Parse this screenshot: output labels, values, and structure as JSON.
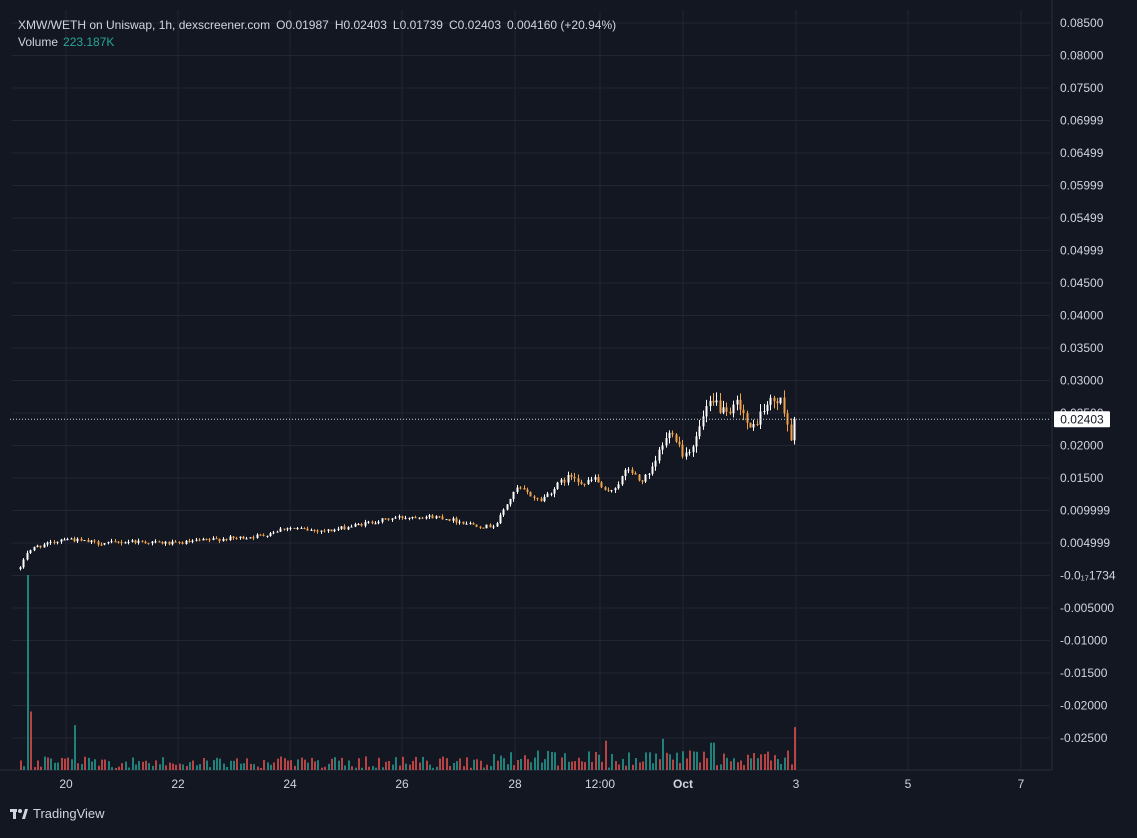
{
  "header": {
    "symbol": "XMW/WETH on Uniswap, 1h, dexscreener.com",
    "ohlc": [
      {
        "label": "O",
        "value": "0.01987"
      },
      {
        "label": "H",
        "value": "0.02403"
      },
      {
        "label": "L",
        "value": "0.01739"
      },
      {
        "label": "C",
        "value": "0.02403"
      }
    ],
    "change": "0.004160 (+20.94%)",
    "volume_label": "Volume",
    "volume_value": "223.187K"
  },
  "brand": "TradingView",
  "colors": {
    "background": "#131722",
    "grid": "#232632",
    "up": "#ffffff",
    "down": "#f0a24a",
    "volume_up": "#26a69a",
    "volume_down": "#ef5350",
    "text": "#d1d4dc",
    "price_tag_bg": "#ffffff",
    "price_tag_text": "#131722"
  },
  "chart_data": {
    "type": "candlestick",
    "title": "XMW/WETH on Uniswap, 1h, dexscreener.com",
    "y_ticks": [
      "0.08500",
      "0.08000",
      "0.07500",
      "0.06999",
      "0.06499",
      "0.05999",
      "0.05499",
      "0.04999",
      "0.04500",
      "0.04000",
      "0.03500",
      "0.03000",
      "0.02500",
      "0.02000",
      "0.01500",
      "0.009999",
      "0.004999",
      "-0.0₁₇1734",
      "-0.005000",
      "-0.01000",
      "-0.01500",
      "-0.02000",
      "-0.02500"
    ],
    "x_ticks": [
      "20",
      "22",
      "24",
      "26",
      "28",
      "12:00",
      "Oct",
      "3",
      "5",
      "7"
    ],
    "ylim": [
      -0.028,
      0.087
    ],
    "last_price": "0.02403",
    "last_price_value": 0.02403,
    "grid": true,
    "price_path": [
      {
        "t": 0,
        "p": 0.001
      },
      {
        "t": 1,
        "p": 0.0035
      },
      {
        "t": 3,
        "p": 0.0045
      },
      {
        "t": 5,
        "p": 0.0048
      },
      {
        "t": 8,
        "p": 0.0058
      },
      {
        "t": 11,
        "p": 0.0053
      },
      {
        "t": 14,
        "p": 0.005
      },
      {
        "t": 17,
        "p": 0.005
      },
      {
        "t": 20,
        "p": 0.0053
      },
      {
        "t": 24,
        "p": 0.0051
      },
      {
        "t": 28,
        "p": 0.0049
      },
      {
        "t": 32,
        "p": 0.0053
      },
      {
        "t": 36,
        "p": 0.0056
      },
      {
        "t": 40,
        "p": 0.0058
      },
      {
        "t": 44,
        "p": 0.0062
      },
      {
        "t": 48,
        "p": 0.0074
      },
      {
        "t": 52,
        "p": 0.007
      },
      {
        "t": 56,
        "p": 0.0069
      },
      {
        "t": 60,
        "p": 0.0076
      },
      {
        "t": 64,
        "p": 0.0083
      },
      {
        "t": 68,
        "p": 0.0089
      },
      {
        "t": 72,
        "p": 0.0091
      },
      {
        "t": 76,
        "p": 0.009
      },
      {
        "t": 80,
        "p": 0.0082
      },
      {
        "t": 84,
        "p": 0.0075
      },
      {
        "t": 86,
        "p": 0.0078
      },
      {
        "t": 88,
        "p": 0.011
      },
      {
        "t": 90,
        "p": 0.0135
      },
      {
        "t": 92,
        "p": 0.0125
      },
      {
        "t": 94,
        "p": 0.0115
      },
      {
        "t": 96,
        "p": 0.013
      },
      {
        "t": 98,
        "p": 0.0145
      },
      {
        "t": 100,
        "p": 0.0155
      },
      {
        "t": 102,
        "p": 0.014
      },
      {
        "t": 104,
        "p": 0.015
      },
      {
        "t": 106,
        "p": 0.0125
      },
      {
        "t": 108,
        "p": 0.014
      },
      {
        "t": 110,
        "p": 0.0165
      },
      {
        "t": 112,
        "p": 0.0145
      },
      {
        "t": 114,
        "p": 0.0155
      },
      {
        "t": 116,
        "p": 0.02
      },
      {
        "t": 118,
        "p": 0.0225
      },
      {
        "t": 120,
        "p": 0.0185
      },
      {
        "t": 122,
        "p": 0.0205
      },
      {
        "t": 124,
        "p": 0.0255
      },
      {
        "t": 126,
        "p": 0.0265
      },
      {
        "t": 128,
        "p": 0.024
      },
      {
        "t": 130,
        "p": 0.027
      },
      {
        "t": 132,
        "p": 0.022
      },
      {
        "t": 134,
        "p": 0.025
      },
      {
        "t": 136,
        "p": 0.027
      },
      {
        "t": 138,
        "p": 0.0265
      },
      {
        "t": 139,
        "p": 0.0225
      },
      {
        "t": 140,
        "p": 0.019
      }
    ],
    "volume_spikes": [
      {
        "t": 1,
        "v": 1.0
      },
      {
        "t": 2,
        "v": 0.3
      },
      {
        "t": 10,
        "v": 0.23
      },
      {
        "t": 106,
        "v": 0.15
      },
      {
        "t": 116,
        "v": 0.16
      },
      {
        "t": 125,
        "v": 0.14
      },
      {
        "t": 140,
        "v": 0.22
      }
    ]
  }
}
